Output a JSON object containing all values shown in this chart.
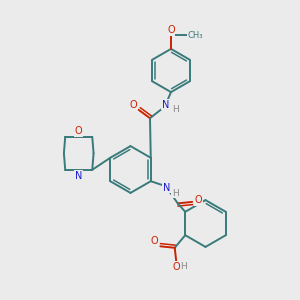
{
  "background_color": "#ebebeb",
  "bond_color": "#3a7a7a",
  "atom_colors": {
    "O": "#cc2200",
    "N": "#1a1acc",
    "C": "#3a7a7a",
    "H": "#888888"
  },
  "figsize": [
    3.0,
    3.0
  ],
  "dpi": 100,
  "xlim": [
    0,
    10
  ],
  "ylim": [
    0,
    10
  ]
}
